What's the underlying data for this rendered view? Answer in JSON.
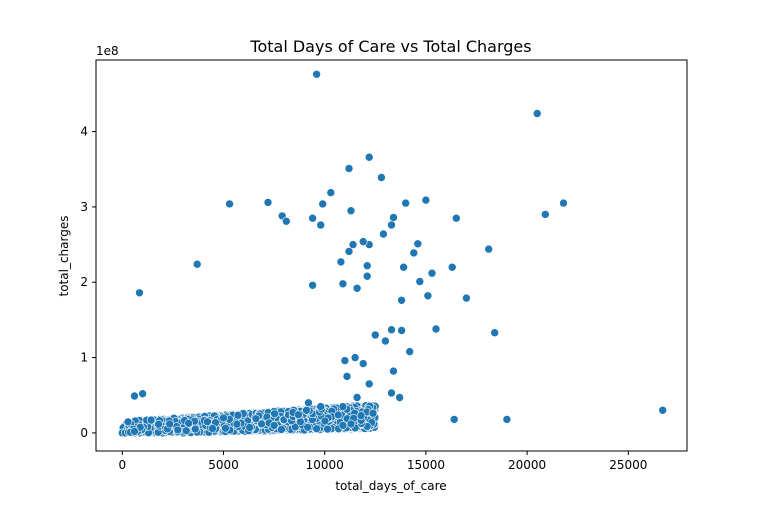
{
  "chart_data": {
    "type": "scatter",
    "title": "Total Days of Care vs Total Charges",
    "xlabel": "total_days_of_care",
    "ylabel": "total_charges",
    "offset_label": "1e8",
    "xlim": [
      -1300,
      27900
    ],
    "ylim": [
      -0.24,
      4.95
    ],
    "y_scale_note": "y values in units of 1e8",
    "xticks": [
      0,
      5000,
      10000,
      15000,
      20000,
      25000
    ],
    "xtick_labels": [
      "0",
      "5000",
      "10000",
      "15000",
      "20000",
      "25000"
    ],
    "yticks": [
      0,
      1,
      2,
      3,
      4
    ],
    "ytick_labels": [
      "0",
      "1",
      "2",
      "3",
      "4"
    ],
    "grid": false,
    "legend": "none",
    "marker_color": "#1f77b4",
    "marker_edge_color": "#ffffff",
    "points": [
      {
        "x": 9600,
        "y": 4.76
      },
      {
        "x": 20500,
        "y": 4.24
      },
      {
        "x": 12200,
        "y": 3.66
      },
      {
        "x": 11200,
        "y": 3.51
      },
      {
        "x": 12800,
        "y": 3.39
      },
      {
        "x": 10300,
        "y": 3.19
      },
      {
        "x": 5300,
        "y": 3.04
      },
      {
        "x": 7200,
        "y": 3.06
      },
      {
        "x": 9900,
        "y": 3.04
      },
      {
        "x": 14000,
        "y": 3.05
      },
      {
        "x": 15000,
        "y": 3.09
      },
      {
        "x": 21800,
        "y": 3.05
      },
      {
        "x": 20900,
        "y": 2.9
      },
      {
        "x": 11300,
        "y": 2.95
      },
      {
        "x": 13400,
        "y": 2.86
      },
      {
        "x": 16500,
        "y": 2.85
      },
      {
        "x": 9400,
        "y": 2.85
      },
      {
        "x": 7900,
        "y": 2.88
      },
      {
        "x": 8100,
        "y": 2.81
      },
      {
        "x": 9800,
        "y": 2.76
      },
      {
        "x": 13300,
        "y": 2.76
      },
      {
        "x": 12900,
        "y": 2.64
      },
      {
        "x": 12200,
        "y": 2.5
      },
      {
        "x": 14600,
        "y": 2.51
      },
      {
        "x": 11900,
        "y": 2.54
      },
      {
        "x": 11400,
        "y": 2.5
      },
      {
        "x": 18100,
        "y": 2.44
      },
      {
        "x": 11200,
        "y": 2.41
      },
      {
        "x": 14400,
        "y": 2.39
      },
      {
        "x": 10800,
        "y": 2.27
      },
      {
        "x": 12100,
        "y": 2.22
      },
      {
        "x": 13900,
        "y": 2.2
      },
      {
        "x": 16300,
        "y": 2.2
      },
      {
        "x": 3700,
        "y": 2.24
      },
      {
        "x": 15300,
        "y": 2.12
      },
      {
        "x": 14700,
        "y": 2.01
      },
      {
        "x": 12100,
        "y": 2.08
      },
      {
        "x": 10900,
        "y": 1.98
      },
      {
        "x": 11600,
        "y": 1.92
      },
      {
        "x": 9400,
        "y": 1.96
      },
      {
        "x": 15100,
        "y": 1.82
      },
      {
        "x": 17000,
        "y": 1.79
      },
      {
        "x": 13800,
        "y": 1.76
      },
      {
        "x": 850,
        "y": 1.86
      },
      {
        "x": 15500,
        "y": 1.38
      },
      {
        "x": 18400,
        "y": 1.33
      },
      {
        "x": 13800,
        "y": 1.36
      },
      {
        "x": 13300,
        "y": 1.37
      },
      {
        "x": 13000,
        "y": 1.22
      },
      {
        "x": 12500,
        "y": 1.3
      },
      {
        "x": 14200,
        "y": 1.08
      },
      {
        "x": 11500,
        "y": 1.0
      },
      {
        "x": 11000,
        "y": 0.96
      },
      {
        "x": 11900,
        "y": 0.92
      },
      {
        "x": 13400,
        "y": 0.82
      },
      {
        "x": 12200,
        "y": 0.65
      },
      {
        "x": 11100,
        "y": 0.75
      },
      {
        "x": 13300,
        "y": 0.53
      },
      {
        "x": 13700,
        "y": 0.47
      },
      {
        "x": 11600,
        "y": 0.47
      },
      {
        "x": 10900,
        "y": 0.35
      },
      {
        "x": 9800,
        "y": 0.35
      },
      {
        "x": 8800,
        "y": 0.15
      },
      {
        "x": 11800,
        "y": 0.23
      },
      {
        "x": 11300,
        "y": 0.12
      },
      {
        "x": 10900,
        "y": 0.1
      },
      {
        "x": 16400,
        "y": 0.18
      },
      {
        "x": 19000,
        "y": 0.18
      },
      {
        "x": 26700,
        "y": 0.3
      },
      {
        "x": 7500,
        "y": 0.1
      },
      {
        "x": 8700,
        "y": 0.24
      },
      {
        "x": 9100,
        "y": 0.3
      },
      {
        "x": 9200,
        "y": 0.4
      },
      {
        "x": 1000,
        "y": 0.52
      },
      {
        "x": 600,
        "y": 0.49
      },
      {
        "x": 0,
        "y": 0.0
      },
      {
        "x": 150,
        "y": 0.0
      },
      {
        "x": 300,
        "y": 0.01
      },
      {
        "x": 400,
        "y": 0.01
      },
      {
        "x": 600,
        "y": 0.02
      }
    ]
  }
}
